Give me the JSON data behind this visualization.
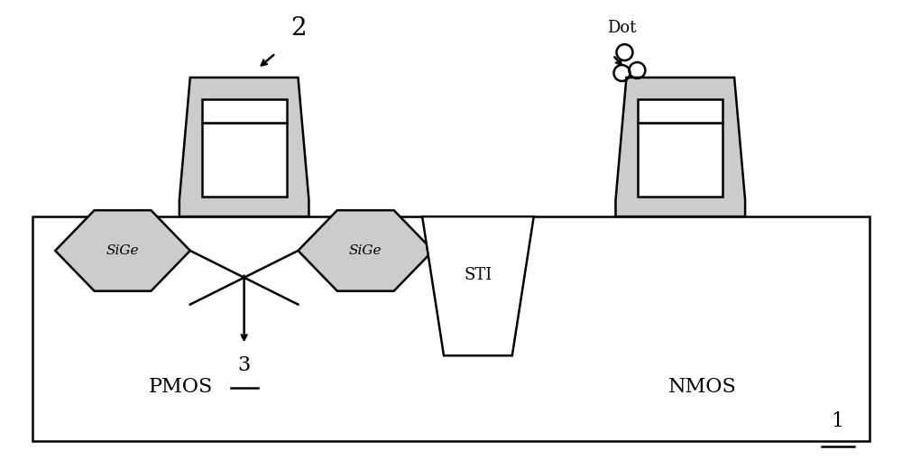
{
  "bg_color": "#ffffff",
  "line_color": "#000000",
  "label_2": "2",
  "label_3": "3",
  "label_dot": "Dot",
  "label_1": "1",
  "label_pmos": "PMOS",
  "label_nmos": "NMOS",
  "label_sige": "SiGe",
  "label_sti": "STI"
}
